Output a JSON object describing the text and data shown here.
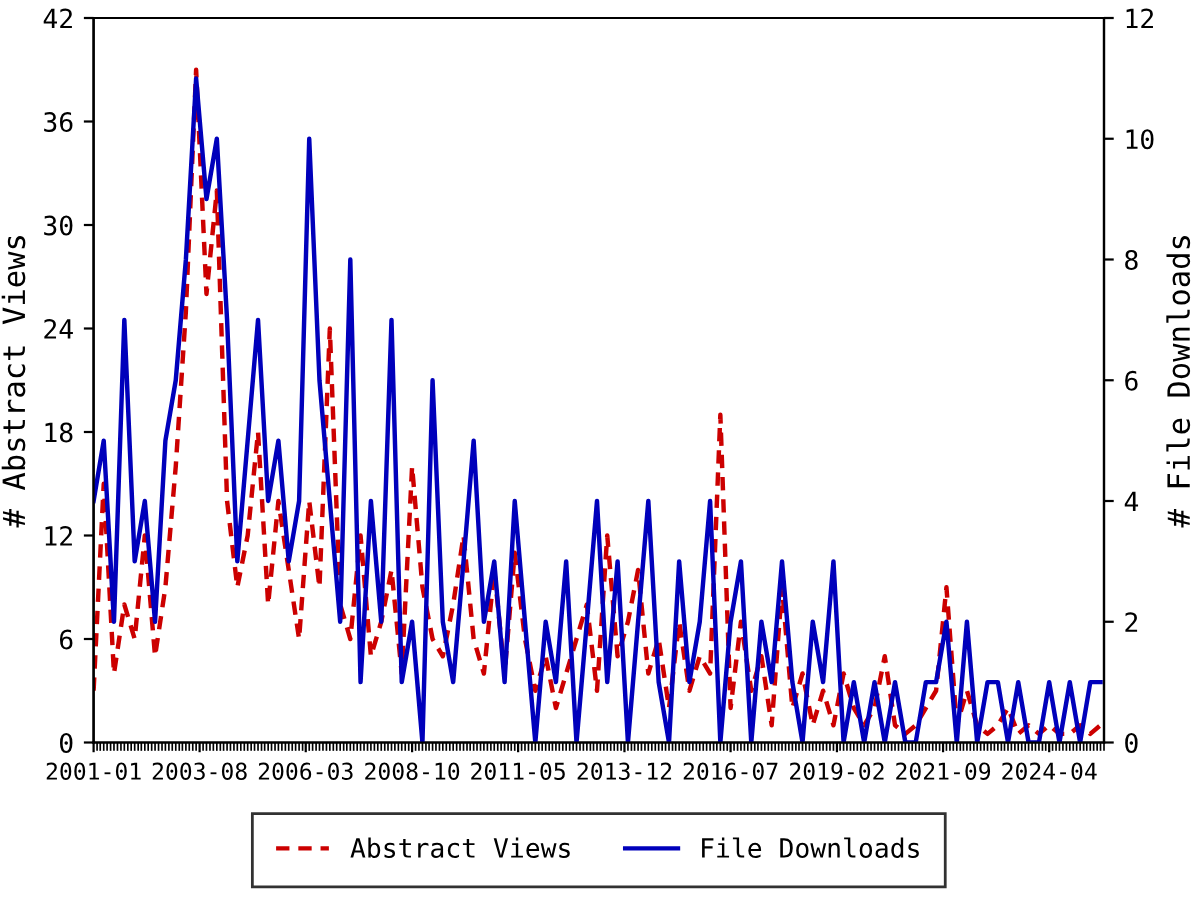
{
  "chart_data": {
    "type": "line",
    "x": [
      "2001-01",
      "2001-04",
      "2001-07",
      "2001-10",
      "2002-01",
      "2002-04",
      "2002-07",
      "2002-10",
      "2003-01",
      "2003-04",
      "2003-07",
      "2003-10",
      "2004-01",
      "2004-04",
      "2004-07",
      "2004-10",
      "2005-01",
      "2005-04",
      "2005-07",
      "2005-10",
      "2006-01",
      "2006-04",
      "2006-07",
      "2006-10",
      "2007-01",
      "2007-04",
      "2007-07",
      "2007-10",
      "2008-01",
      "2008-04",
      "2008-07",
      "2008-10",
      "2009-01",
      "2009-04",
      "2009-07",
      "2009-10",
      "2010-01",
      "2010-04",
      "2010-07",
      "2010-10",
      "2011-01",
      "2011-04",
      "2011-07",
      "2011-10",
      "2012-01",
      "2012-04",
      "2012-07",
      "2012-10",
      "2013-01",
      "2013-04",
      "2013-07",
      "2013-10",
      "2014-01",
      "2014-04",
      "2014-07",
      "2014-10",
      "2015-01",
      "2015-04",
      "2015-07",
      "2015-10",
      "2016-01",
      "2016-04",
      "2016-07",
      "2016-10",
      "2017-01",
      "2017-04",
      "2017-07",
      "2017-10",
      "2018-01",
      "2018-04",
      "2018-07",
      "2018-10",
      "2019-01",
      "2019-04",
      "2019-07",
      "2019-10",
      "2020-01",
      "2020-04",
      "2020-07",
      "2020-10",
      "2021-01",
      "2021-04",
      "2021-07",
      "2021-10",
      "2022-01",
      "2022-04",
      "2022-07",
      "2022-10",
      "2023-01",
      "2023-04",
      "2023-07",
      "2023-10",
      "2024-01",
      "2024-04",
      "2024-07",
      "2024-10",
      "2025-01",
      "2025-04",
      "2025-07"
    ],
    "series": [
      {
        "name": "Abstract Views",
        "color": "#cc0000",
        "line_style": "dashed",
        "values": [
          3,
          15,
          4,
          8,
          6,
          12,
          5,
          9,
          16,
          25,
          39,
          26,
          32,
          14,
          9,
          12,
          18,
          8,
          14,
          10,
          6,
          14,
          9,
          24,
          8,
          6,
          12,
          5,
          7,
          10,
          4,
          16,
          9,
          6,
          5,
          8,
          12,
          6,
          4,
          10,
          4,
          11,
          6,
          3,
          5,
          2,
          4,
          6,
          8,
          3,
          12,
          5,
          7,
          10,
          4,
          6,
          2,
          7,
          3,
          5,
          4,
          19,
          2,
          7,
          3,
          5,
          1,
          9,
          2,
          4,
          1,
          3,
          1,
          4,
          2,
          1,
          2,
          5,
          1,
          0.5,
          1,
          2,
          3,
          9,
          1,
          3,
          1,
          0.5,
          1,
          2,
          0.5,
          1,
          0.5,
          1,
          0.5,
          0.5,
          1,
          0.5,
          1
        ]
      },
      {
        "name": "File Downloads",
        "color": "#0000bb",
        "axis": "y2",
        "line_style": "solid",
        "values": [
          4,
          5,
          2,
          7,
          3,
          4,
          2,
          5,
          6,
          8,
          11,
          9,
          10,
          7,
          3,
          5,
          7,
          4,
          5,
          3,
          4,
          10,
          6,
          4,
          2,
          8,
          1,
          4,
          2,
          7,
          1,
          2,
          0,
          6,
          2,
          1,
          3,
          5,
          2,
          3,
          1,
          4,
          2,
          0,
          2,
          1,
          3,
          0,
          2,
          4,
          1,
          3,
          0,
          2,
          4,
          1,
          0,
          3,
          1,
          2,
          4,
          0,
          2,
          3,
          0,
          2,
          1,
          3,
          1,
          0,
          2,
          1,
          3,
          0,
          1,
          0,
          1,
          0,
          1,
          0,
          0,
          1,
          1,
          2,
          0,
          2,
          0,
          1,
          1,
          0,
          1,
          0,
          0,
          1,
          0,
          1,
          0,
          1,
          1
        ]
      }
    ],
    "xlim": [
      "2001-01",
      "2025-08"
    ],
    "xticks": [
      "2001-01",
      "2003-08",
      "2006-03",
      "2008-10",
      "2011-05",
      "2013-12",
      "2016-07",
      "2019-02",
      "2021-09",
      "2024-04"
    ],
    "ylim": [
      0,
      42
    ],
    "yticks": [
      0,
      6,
      12,
      18,
      24,
      30,
      36,
      42
    ],
    "y2lim": [
      0,
      12
    ],
    "y2ticks": [
      0,
      2,
      4,
      6,
      8,
      10,
      12
    ],
    "ylabel": "# Abstract Views",
    "y2label": "# File Downloads",
    "legend": "bottom",
    "grid": false,
    "marker": "none"
  }
}
